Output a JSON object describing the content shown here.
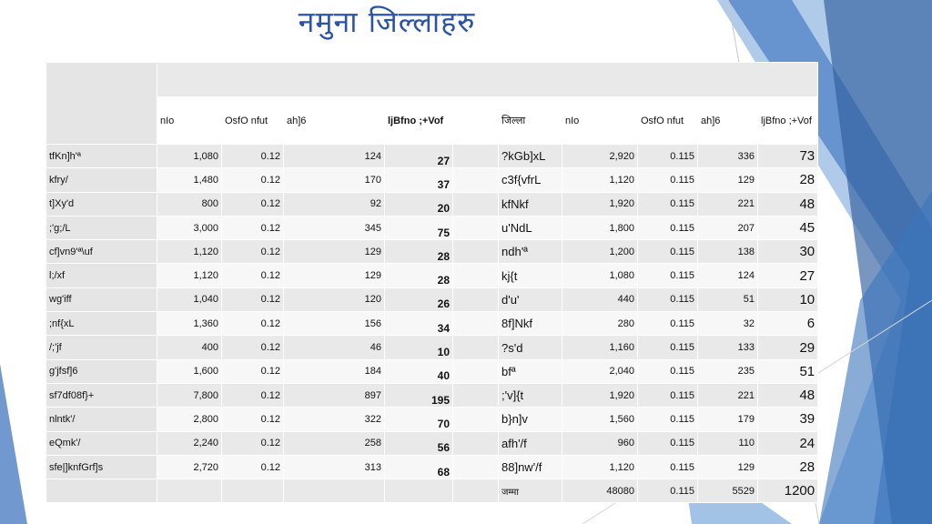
{
  "title": "नमुना जिल्लाहरु",
  "colors": {
    "title": "#2b53a7",
    "accent_blue": "#3a6db4",
    "light_blue": "#7aa8dc"
  },
  "table": {
    "headers_left": [
      "nIo",
      "OsfO nfut",
      "ah]6",
      "ljBfno ;+Vof"
    ],
    "headers_right": [
      "जिल्ला",
      "nIo",
      "OsfO nfut",
      "ah]6",
      "ljBfno ;+Vof"
    ],
    "rows": [
      {
        "d1": "tfKn]h'ª",
        "a1": "1,080",
        "b1": "0.12",
        "c1": "124",
        "s1": "27",
        "d2": "?kGb]xL",
        "a2": "2,920",
        "b2": "0.115",
        "c2": "336",
        "s2": "73"
      },
      {
        "d1": "kfry/",
        "a1": "1,480",
        "b1": "0.12",
        "c1": "170",
        "s1": "37",
        "d2": "c3f{vfrL",
        "a2": "1,120",
        "b2": "0.115",
        "c2": "129",
        "s2": "28"
      },
      {
        "d1": "t]Xy'd",
        "a1": "800",
        "b1": "0.12",
        "c1": "92",
        "s1": "20",
        "d2": "kfNkf",
        "a2": "1,920",
        "b2": "0.115",
        "c2": "221",
        "s2": "48"
      },
      {
        "d1": ";'g;/L",
        "a1": "3,000",
        "b1": "0.12",
        "c1": "345",
        "s1": "75",
        "d2": "u'NdL",
        "a2": "1,800",
        "b2": "0.115",
        "c2": "207",
        "s2": "45"
      },
      {
        "d1": "cf]vn9'ª\\uf",
        "a1": "1,120",
        "b1": "0.12",
        "c1": "129",
        "s1": "28",
        "d2": "ndh'ª",
        "a2": "1,200",
        "b2": "0.115",
        "c2": "138",
        "s2": "30"
      },
      {
        "d1": "l;/xf",
        "a1": "1,120",
        "b1": "0.12",
        "c1": "129",
        "s1": "28",
        "d2": "kj{t",
        "a2": "1,080",
        "b2": "0.115",
        "c2": "124",
        "s2": "27"
      },
      {
        "d1": "wg'iff",
        "a1": "1,040",
        "b1": "0.12",
        "c1": "120",
        "s1": "26",
        "d2": "d'u'",
        "a2": "440",
        "b2": "0.115",
        "c2": "51",
        "s2": "10"
      },
      {
        "d1": ";nf{xL",
        "a1": "1,360",
        "b1": "0.12",
        "c1": "156",
        "s1": "34",
        "d2": "8f]Nkf",
        "a2": "280",
        "b2": "0.115",
        "c2": "32",
        "s2": "6"
      },
      {
        "d1": "/;'jf",
        "a1": "400",
        "b1": "0.12",
        "c1": "46",
        "s1": "10",
        "d2": "?s'd",
        "a2": "1,160",
        "b2": "0.115",
        "c2": "133",
        "s2": "29"
      },
      {
        "d1": "g'jfsf]6",
        "a1": "1,600",
        "b1": "0.12",
        "c1": "184",
        "s1": "40",
        "d2": "bfª",
        "a2": "2,040",
        "b2": "0.115",
        "c2": "235",
        "s2": "51"
      },
      {
        "d1": "sf7df08f}+",
        "a1": "7,800",
        "b1": "0.12",
        "c1": "897",
        "s1": "195",
        "d2": ";'v]{t",
        "a2": "1,920",
        "b2": "0.115",
        "c2": "221",
        "s2": "48"
      },
      {
        "d1": "nlntk'/",
        "a1": "2,800",
        "b1": "0.12",
        "c1": "322",
        "s1": "70",
        "d2": "b}n]v",
        "a2": "1,560",
        "b2": "0.115",
        "c2": "179",
        "s2": "39"
      },
      {
        "d1": "eQmk'/",
        "a1": "2,240",
        "b1": "0.12",
        "c1": "258",
        "s1": "56",
        "d2": "afh'/f",
        "a2": "960",
        "b2": "0.115",
        "c2": "110",
        "s2": "24"
      },
      {
        "d1": "sfe|]knfGrf]s",
        "a1": "2,720",
        "b1": "0.12",
        "c1": "313",
        "s1": "68",
        "d2": "88]nw'/f",
        "a2": "1,120",
        "b2": "0.115",
        "c2": "129",
        "s2": "28"
      }
    ],
    "total": {
      "label": "जम्मा",
      "a2": "48080",
      "b2": "0.115",
      "c2": "5529",
      "s2": "1200"
    }
  }
}
